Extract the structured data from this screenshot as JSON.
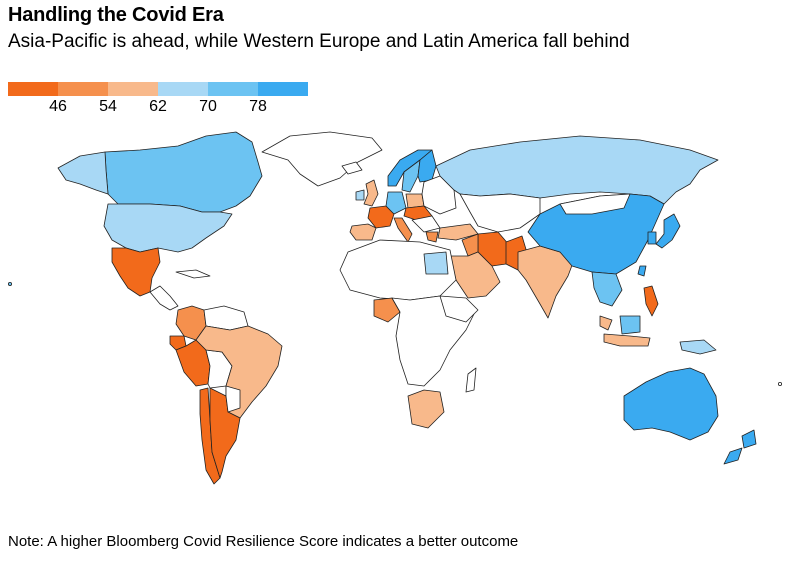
{
  "title": "Handling the Covid Era",
  "subtitle": "Asia-Pacific is ahead, while Western Europe and Latin America fall behind",
  "legend": {
    "ticks": [
      "46",
      "54",
      "62",
      "70",
      "78"
    ],
    "colors": [
      "#f26a1b",
      "#f5904d",
      "#f8b98b",
      "#a8d8f5",
      "#6cc3f2",
      "#3aaaf0"
    ]
  },
  "note": "Note: A higher Bloomberg Covid Resilience Score indicates a better outcome",
  "colors": {
    "no_data": "#ffffff",
    "border": "#222222"
  }
}
